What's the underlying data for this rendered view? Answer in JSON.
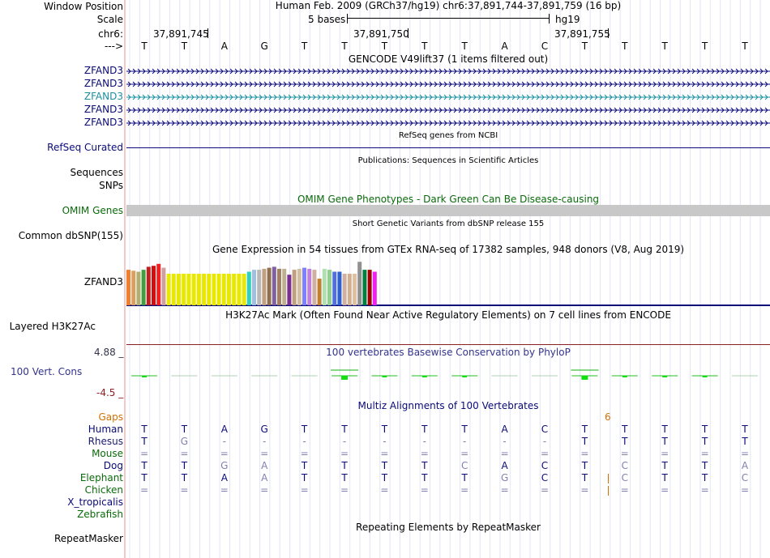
{
  "header": {
    "window_position_label": "Window Position",
    "scale_label": "Scale",
    "chr_label": "chr6:",
    "strand_label": "--->",
    "position_text": "Human Feb. 2009 (GRCh37/hg19)   chr6:37,891,744-37,891,759 (16 bp)",
    "scale_text": "5 bases",
    "assembly": "hg19",
    "coord_ticks": [
      "37,891,745",
      "37,891,750",
      "37,891,755"
    ]
  },
  "sequence": [
    "T",
    "T",
    "A",
    "G",
    "T",
    "T",
    "T",
    "T",
    "T",
    "A",
    "C",
    "T",
    "T",
    "T",
    "T",
    "T"
  ],
  "gencode": {
    "title": "GENCODE V49lift37 (1 items filtered out)",
    "genes": [
      {
        "label": "ZFAND3",
        "color": "#0a0a78"
      },
      {
        "label": "ZFAND3",
        "color": "#0a0a78"
      },
      {
        "label": "ZFAND3",
        "color": "#1b8fa0"
      },
      {
        "label": "ZFAND3",
        "color": "#0a0a78"
      },
      {
        "label": "ZFAND3",
        "color": "#0a0a78"
      }
    ]
  },
  "refseq": {
    "title": "RefSeq genes from NCBI",
    "label": "RefSeq Curated"
  },
  "publications": {
    "title": "Publications: Sequences in Scientific Articles",
    "label1": "Sequences",
    "label2": "SNPs"
  },
  "omim": {
    "title": "OMIM Gene Phenotypes - Dark Green Can Be Disease-causing",
    "label": "OMIM Genes"
  },
  "dbsnp": {
    "title": "Short Genetic Variants from dbSNP release 155",
    "label": "Common dbSNP(155)"
  },
  "gtex": {
    "title": "Gene Expression in 54 tissues from GTEx RNA-seq of 17382 samples, 948 donors (V8, Aug 2019)",
    "label": "ZFAND3",
    "bar_colors": [
      "#f08030",
      "#d9a060",
      "#b0b070",
      "#40a040",
      "#c02020",
      "#d01010",
      "#f02020",
      "#d0a0a0",
      "#e8e800",
      "#e8e800",
      "#e8e800",
      "#e8e800",
      "#e8e800",
      "#e8e800",
      "#e8e800",
      "#e8e800",
      "#e8e800",
      "#e8e800",
      "#e8e800",
      "#e8e800",
      "#e8e800",
      "#e8e800",
      "#e8e800",
      "#e8e800",
      "#30d0c0",
      "#a0c0e0",
      "#b8b8b8",
      "#c0a080",
      "#907050",
      "#8060a0",
      "#a08060",
      "#c0b090",
      "#7a3090",
      "#c0a080",
      "#d0c0a0",
      "#8080ff",
      "#c080e0",
      "#d0b0a0",
      "#c08030",
      "#b0e0b0",
      "#90d090",
      "#5070e0",
      "#3060d0",
      "#d0b0a0",
      "#d0b090",
      "#e0c0a0",
      "#909090",
      "#008040",
      "#a00000",
      "#f020f0"
    ],
    "bar_values": [
      0.72,
      0.7,
      0.68,
      0.72,
      0.78,
      0.8,
      0.84,
      0.76,
      0.64,
      0.64,
      0.64,
      0.64,
      0.64,
      0.64,
      0.64,
      0.64,
      0.64,
      0.64,
      0.64,
      0.64,
      0.64,
      0.64,
      0.64,
      0.64,
      0.68,
      0.72,
      0.72,
      0.74,
      0.76,
      0.78,
      0.74,
      0.74,
      0.62,
      0.72,
      0.74,
      0.76,
      0.74,
      0.72,
      0.54,
      0.74,
      0.72,
      0.68,
      0.68,
      0.64,
      0.64,
      0.64,
      0.88,
      0.72,
      0.72,
      0.68
    ]
  },
  "h3k27ac": {
    "title": "H3K27Ac Mark (Often Found Near Active Regulatory Elements) on 7 cell lines from ENCODE",
    "label": "Layered H3K27Ac"
  },
  "phylop": {
    "title": "100 vertebrates Basewise Conservation by PhyloP",
    "label": "100 Vert. Cons",
    "max_label": "4.88 _",
    "min_label": "-4.5 _",
    "values": [
      0.3,
      0.0,
      0.0,
      0.0,
      0.0,
      2.0,
      0.6,
      0.6,
      0.2,
      0.0,
      0.0,
      2.0,
      0.2,
      0.6,
      0.6,
      0.0
    ]
  },
  "multiz": {
    "title": "Multiz Alignments of 100 Vertebrates",
    "gaps_label": "Gaps",
    "gap_value": "6",
    "species": [
      {
        "name": "Human",
        "color": "#0a0a78",
        "bases": [
          "T",
          "T",
          "A",
          "G",
          "T",
          "T",
          "T",
          "T",
          "T",
          "A",
          "C",
          "T",
          "T",
          "T",
          "T",
          "T"
        ]
      },
      {
        "name": "Rhesus",
        "color": "#1a1a70",
        "bases": [
          "T",
          "G",
          "-",
          "-",
          "-",
          "-",
          "-",
          "-",
          "-",
          "-",
          "-",
          "T",
          "T",
          "T",
          "T",
          "T"
        ]
      },
      {
        "name": "Mouse",
        "color": "#0a6a0a",
        "bases": [
          "=",
          "=",
          "=",
          "=",
          "=",
          "=",
          "=",
          "=",
          "=",
          "=",
          "=",
          "=",
          "=",
          "=",
          "=",
          "="
        ]
      },
      {
        "name": "Dog",
        "color": "#0a0a78",
        "bases": [
          "T",
          "T",
          "G",
          "A",
          "T",
          "T",
          "T",
          "T",
          "C",
          "A",
          "C",
          "T",
          "C",
          "T",
          "T",
          "A"
        ]
      },
      {
        "name": "Elephant",
        "color": "#0a6a0a",
        "bases": [
          "T",
          "T",
          "A",
          "A",
          "T",
          "T",
          "T",
          "T",
          "T",
          "G",
          "C",
          "T",
          "C",
          "T",
          "T",
          "C"
        ]
      },
      {
        "name": "Chicken",
        "color": "#0a6a0a",
        "bases": [
          "=",
          "=",
          "=",
          "=",
          "=",
          "=",
          "=",
          "=",
          "=",
          "=",
          "=",
          "=",
          "=",
          "=",
          "=",
          "="
        ]
      },
      {
        "name": "X_tropicalis",
        "color": "#0a0a78",
        "bases": []
      },
      {
        "name": "Zebrafish",
        "color": "#0a6a0a",
        "bases": []
      }
    ]
  },
  "repeatmasker": {
    "title": "Repeating Elements by RepeatMasker",
    "label": "RepeatMasker"
  },
  "colors": {
    "navy": "#0a0a78",
    "green": "#0a6a0a",
    "orange": "#d07000",
    "maroon": "#8b2020",
    "conservation": "#34344c"
  }
}
